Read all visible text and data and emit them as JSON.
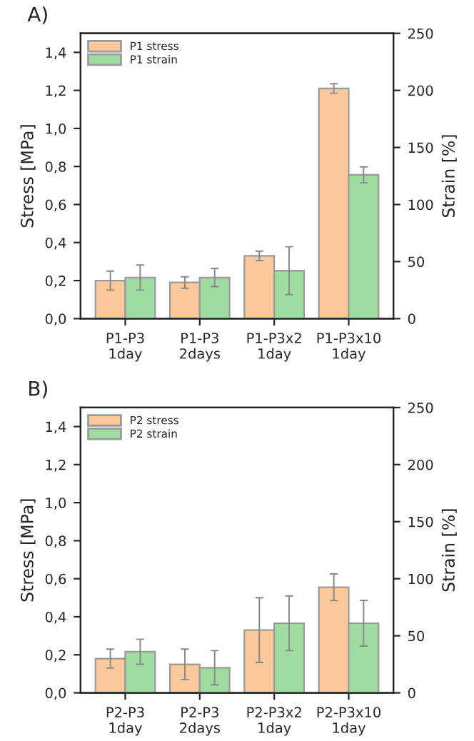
{
  "chart_data": [
    {
      "type": "bar",
      "title": "A)",
      "ylabel": "Stress [MPa]",
      "y2label": "Strain [%]",
      "categories": [
        "P1-P3\n1day",
        "P1-P3\n2days",
        "P1-P3x2\n1day",
        "P1-P3x10\n1day"
      ],
      "series": [
        {
          "name": "P1 stress",
          "color": "#fdc99b",
          "values": [
            0.2,
            0.19,
            0.33,
            1.21
          ],
          "errors": [
            0.05,
            0.03,
            0.025,
            0.025
          ]
        },
        {
          "name": "P1 strain",
          "color": "#9fdca0",
          "axis": "y2",
          "values": [
            36,
            36,
            42,
            126
          ],
          "errors": [
            11,
            8,
            21,
            7
          ]
        }
      ],
      "ylim": [
        0,
        1.5
      ],
      "yticks": [
        {
          "value": 0,
          "label": "0,0"
        },
        {
          "value": 0.2,
          "label": "0,2"
        },
        {
          "value": 0.4,
          "label": "0,4"
        },
        {
          "value": 0.6,
          "label": "0,6"
        },
        {
          "value": 0.8,
          "label": "0,8"
        },
        {
          "value": 1.0,
          "label": "1,0"
        },
        {
          "value": 1.2,
          "label": "1,2"
        },
        {
          "value": 1.4,
          "label": "1,4"
        }
      ],
      "y2lim": [
        0,
        250
      ],
      "y2ticks": [
        0,
        50,
        100,
        150,
        200,
        250
      ],
      "legend": "top left",
      "grid": false
    },
    {
      "type": "bar",
      "title": "B)",
      "ylabel": "Stress [MPa]",
      "y2label": "Strain [%]",
      "categories": [
        "P2-P3\n1day",
        "P2-P3\n2days",
        "P2-P3x2\n1day",
        "P2-P3x10\n1day"
      ],
      "series": [
        {
          "name": "P2 stress",
          "color": "#fdc99b",
          "values": [
            0.18,
            0.15,
            0.33,
            0.555
          ],
          "errors": [
            0.05,
            0.08,
            0.17,
            0.07
          ]
        },
        {
          "name": "P2 strain",
          "color": "#9fdca0",
          "axis": "y2",
          "values": [
            36,
            22,
            61,
            61
          ],
          "errors": [
            11,
            15,
            24,
            20
          ]
        }
      ],
      "ylim": [
        0,
        1.5
      ],
      "yticks": [
        {
          "value": 0,
          "label": "0,0"
        },
        {
          "value": 0.2,
          "label": "0,2"
        },
        {
          "value": 0.4,
          "label": "0,4"
        },
        {
          "value": 0.6,
          "label": "0,6"
        },
        {
          "value": 0.8,
          "label": "0,8"
        },
        {
          "value": 1.0,
          "label": "1,0"
        },
        {
          "value": 1.2,
          "label": "1,2"
        },
        {
          "value": 1.4,
          "label": "1,4"
        }
      ],
      "y2lim": [
        0,
        250
      ],
      "y2ticks": [
        0,
        50,
        100,
        150,
        200,
        250
      ],
      "legend": "top left",
      "grid": false
    }
  ]
}
